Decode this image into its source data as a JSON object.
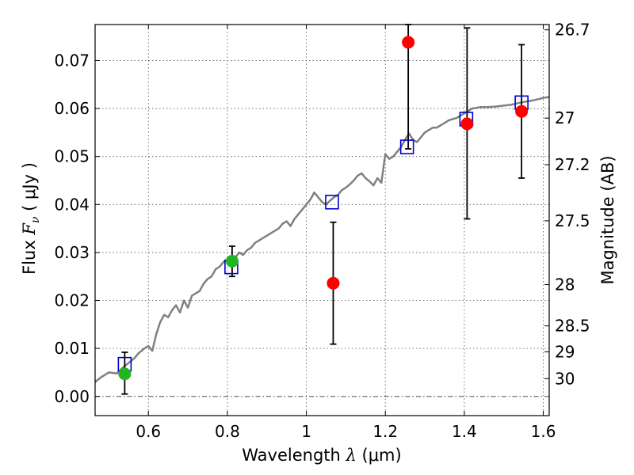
{
  "chart_data": {
    "type": "scatter",
    "xlabel": {
      "prefix": "Wavelength  ",
      "symbol": "λ",
      "unit": " (μm)"
    },
    "ylabel": {
      "prefix": "Flux  ",
      "symbol": "F",
      "subscript": "ν",
      "unit": "  ( μJy )"
    },
    "y2label": "Magnitude (AB)",
    "xlim": [
      0.465,
      1.615
    ],
    "ylim": [
      -0.004,
      0.0775
    ],
    "x_ticks": [
      {
        "value": 0.6,
        "label": "0.6"
      },
      {
        "value": 0.8,
        "label": "0.8"
      },
      {
        "value": 1.0,
        "label": "1"
      },
      {
        "value": 1.2,
        "label": "1.2"
      },
      {
        "value": 1.4,
        "label": "1.4"
      },
      {
        "value": 1.6,
        "label": "1.6"
      }
    ],
    "y_ticks": [
      {
        "value": 0.0,
        "label": "0.00"
      },
      {
        "value": 0.01,
        "label": "0.01"
      },
      {
        "value": 0.02,
        "label": "0.02"
      },
      {
        "value": 0.03,
        "label": "0.03"
      },
      {
        "value": 0.04,
        "label": "0.04"
      },
      {
        "value": 0.05,
        "label": "0.05"
      },
      {
        "value": 0.06,
        "label": "0.06"
      },
      {
        "value": 0.07,
        "label": "0.07"
      }
    ],
    "y2_ticks": [
      {
        "flux": 0.0764,
        "label": "26.7"
      },
      {
        "flux": 0.058,
        "label": "27"
      },
      {
        "flux": 0.0483,
        "label": "27.2"
      },
      {
        "flux": 0.0366,
        "label": "27.5"
      },
      {
        "flux": 0.0233,
        "label": "28"
      },
      {
        "flux": 0.0147,
        "label": "28.5"
      },
      {
        "flux": 0.0093,
        "label": "29"
      },
      {
        "flux": 0.0037,
        "label": "30"
      }
    ],
    "grid": true,
    "zero_line": true,
    "series": [
      {
        "name": "model-spectrum",
        "kind": "line",
        "color": "#808080",
        "x": [
          0.465,
          0.48,
          0.5,
          0.52,
          0.535,
          0.55,
          0.565,
          0.575,
          0.59,
          0.6,
          0.61,
          0.62,
          0.63,
          0.64,
          0.65,
          0.66,
          0.67,
          0.68,
          0.69,
          0.7,
          0.71,
          0.72,
          0.73,
          0.74,
          0.75,
          0.76,
          0.77,
          0.78,
          0.79,
          0.8,
          0.81,
          0.82,
          0.83,
          0.84,
          0.85,
          0.86,
          0.87,
          0.88,
          0.89,
          0.9,
          0.91,
          0.92,
          0.93,
          0.94,
          0.95,
          0.96,
          0.97,
          0.98,
          0.99,
          1.0,
          1.01,
          1.02,
          1.03,
          1.04,
          1.05,
          1.06,
          1.07,
          1.08,
          1.09,
          1.1,
          1.11,
          1.12,
          1.13,
          1.14,
          1.15,
          1.16,
          1.17,
          1.18,
          1.19,
          1.2,
          1.21,
          1.22,
          1.23,
          1.24,
          1.25,
          1.26,
          1.27,
          1.28,
          1.29,
          1.3,
          1.31,
          1.32,
          1.33,
          1.34,
          1.35,
          1.36,
          1.37,
          1.38,
          1.39,
          1.4,
          1.42,
          1.44,
          1.46,
          1.48,
          1.5,
          1.52,
          1.54,
          1.56,
          1.58,
          1.6,
          1.615
        ],
        "y": [
          0.003,
          0.004,
          0.005,
          0.0048,
          0.006,
          0.007,
          0.008,
          0.009,
          0.01,
          0.0105,
          0.0095,
          0.013,
          0.0155,
          0.017,
          0.0165,
          0.018,
          0.019,
          0.0175,
          0.02,
          0.0185,
          0.021,
          0.0215,
          0.022,
          0.0235,
          0.0245,
          0.025,
          0.0265,
          0.027,
          0.028,
          0.0285,
          0.028,
          0.029,
          0.03,
          0.0295,
          0.0305,
          0.031,
          0.032,
          0.0325,
          0.033,
          0.0335,
          0.034,
          0.0345,
          0.035,
          0.036,
          0.0365,
          0.0355,
          0.037,
          0.038,
          0.039,
          0.04,
          0.041,
          0.0425,
          0.0415,
          0.0405,
          0.04,
          0.0408,
          0.0415,
          0.042,
          0.043,
          0.0435,
          0.0442,
          0.045,
          0.046,
          0.0465,
          0.0455,
          0.0448,
          0.044,
          0.0455,
          0.0445,
          0.0505,
          0.0495,
          0.05,
          0.051,
          0.052,
          0.0535,
          0.0548,
          0.0535,
          0.053,
          0.054,
          0.055,
          0.0555,
          0.056,
          0.056,
          0.0565,
          0.057,
          0.0575,
          0.0578,
          0.058,
          0.0585,
          0.059,
          0.06,
          0.0603,
          0.0603,
          0.0604,
          0.0606,
          0.0608,
          0.0612,
          0.0615,
          0.0618,
          0.0622,
          0.0624
        ]
      },
      {
        "name": "model-band-flux",
        "kind": "open-square",
        "color": "#0000cc",
        "x": [
          0.54,
          0.81,
          1.065,
          1.255,
          1.405,
          1.545
        ],
        "y": [
          0.0067,
          0.027,
          0.0405,
          0.052,
          0.0578,
          0.0612
        ]
      },
      {
        "name": "observed-green",
        "kind": "filled-circle",
        "color": "#22b522",
        "x": [
          0.54,
          0.812
        ],
        "y": [
          0.0047,
          0.0282
        ],
        "yerr_low": [
          0.0005,
          0.025
        ],
        "yerr_high": [
          0.0092,
          0.0313
        ]
      },
      {
        "name": "observed-red",
        "kind": "filled-circle",
        "color": "#ff0000",
        "x": [
          1.068,
          1.258,
          1.407,
          1.545
        ],
        "y": [
          0.0236,
          0.0738,
          0.0568,
          0.0594
        ],
        "yerr_low": [
          0.0109,
          0.0516,
          0.037,
          0.0455
        ],
        "yerr_high": [
          0.0363,
          0.0775,
          0.0768,
          0.0733
        ]
      }
    ]
  }
}
